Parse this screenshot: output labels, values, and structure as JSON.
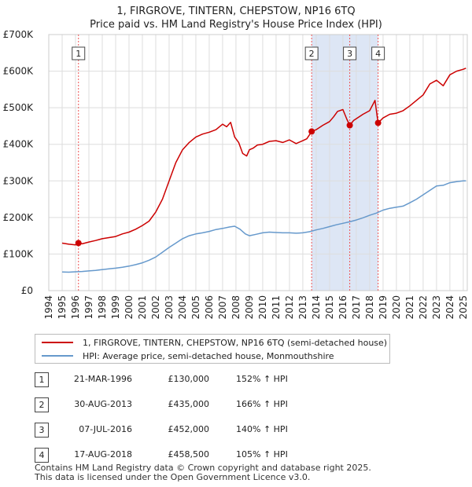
{
  "title_line1": "1, FIRGROVE, TINTERN, CHEPSTOW, NP16 6TQ",
  "title_line2": "Price paid vs. HM Land Registry's House Price Index (HPI)",
  "chart_data": {
    "type": "line",
    "title": "1, FIRGROVE, TINTERN, CHEPSTOW, NP16 6TQ — Price paid vs. HM Land Registry's House Price Index (HPI)",
    "xlabel": "",
    "ylabel": "",
    "xlim": [
      1994,
      2025.3
    ],
    "ylim": [
      0,
      700000
    ],
    "y_ticks": [
      0,
      100000,
      200000,
      300000,
      400000,
      500000,
      600000,
      700000
    ],
    "y_tick_labels": [
      "£0",
      "£100K",
      "£200K",
      "£300K",
      "£400K",
      "£500K",
      "£600K",
      "£700K"
    ],
    "x_ticks": [
      1994,
      1995,
      1996,
      1997,
      1998,
      1999,
      2000,
      2001,
      2002,
      2003,
      2004,
      2005,
      2006,
      2007,
      2008,
      2009,
      2010,
      2011,
      2012,
      2013,
      2014,
      2015,
      2016,
      2017,
      2018,
      2019,
      2020,
      2021,
      2022,
      2023,
      2024,
      2025
    ],
    "grid": true,
    "series": [
      {
        "name": "1, FIRGROVE, TINTERN, CHEPSTOW, NP16 6TQ (semi-detached house)",
        "color": "#cc0000",
        "x": [
          1995.0,
          1995.5,
          1996.0,
          1996.22,
          1996.5,
          1997.0,
          1997.5,
          1998.0,
          1998.5,
          1999.0,
          1999.5,
          2000.0,
          2000.5,
          2001.0,
          2001.5,
          2002.0,
          2002.5,
          2003.0,
          2003.5,
          2004.0,
          2004.5,
          2005.0,
          2005.5,
          2006.0,
          2006.5,
          2007.0,
          2007.3,
          2007.6,
          2007.9,
          2008.2,
          2008.5,
          2008.8,
          2009.0,
          2009.3,
          2009.6,
          2010.0,
          2010.5,
          2011.0,
          2011.5,
          2012.0,
          2012.5,
          2013.0,
          2013.3,
          2013.66,
          2014.0,
          2014.5,
          2015.0,
          2015.3,
          2015.6,
          2016.0,
          2016.3,
          2016.51,
          2016.8,
          2017.0,
          2017.5,
          2018.0,
          2018.4,
          2018.63,
          2019.0,
          2019.5,
          2020.0,
          2020.5,
          2021.0,
          2021.5,
          2022.0,
          2022.5,
          2023.0,
          2023.5,
          2024.0,
          2024.5,
          2025.0,
          2025.2
        ],
        "values": [
          130000,
          127000,
          125000,
          130000,
          128000,
          133000,
          137000,
          142000,
          145000,
          148000,
          155000,
          160000,
          168000,
          178000,
          190000,
          215000,
          250000,
          300000,
          350000,
          385000,
          405000,
          420000,
          428000,
          433000,
          440000,
          455000,
          448000,
          460000,
          420000,
          405000,
          375000,
          368000,
          385000,
          390000,
          398000,
          400000,
          408000,
          410000,
          405000,
          412000,
          402000,
          410000,
          415000,
          435000,
          440000,
          452000,
          462000,
          475000,
          490000,
          495000,
          468000,
          452000,
          465000,
          470000,
          482000,
          492000,
          520000,
          458500,
          472000,
          482000,
          485000,
          492000,
          505000,
          520000,
          535000,
          565000,
          575000,
          560000,
          590000,
          600000,
          605000,
          608000
        ]
      },
      {
        "name": "HPI: Average price, semi-detached house, Monmouthshire",
        "color": "#6699cc",
        "x": [
          1995.0,
          1995.5,
          1996.0,
          1996.5,
          1997.0,
          1997.5,
          1998.0,
          1998.5,
          1999.0,
          1999.5,
          2000.0,
          2000.5,
          2001.0,
          2001.5,
          2002.0,
          2002.5,
          2003.0,
          2003.5,
          2004.0,
          2004.5,
          2005.0,
          2005.5,
          2006.0,
          2006.5,
          2007.0,
          2007.5,
          2007.9,
          2008.3,
          2008.7,
          2009.0,
          2009.5,
          2010.0,
          2010.5,
          2011.0,
          2011.5,
          2012.0,
          2012.5,
          2013.0,
          2013.5,
          2014.0,
          2014.5,
          2015.0,
          2015.5,
          2016.0,
          2016.5,
          2017.0,
          2017.5,
          2018.0,
          2018.5,
          2019.0,
          2019.5,
          2020.0,
          2020.5,
          2021.0,
          2021.5,
          2022.0,
          2022.5,
          2023.0,
          2023.5,
          2024.0,
          2024.5,
          2025.0,
          2025.2
        ],
        "values": [
          51000,
          50500,
          51500,
          52500,
          54000,
          55500,
          57500,
          59500,
          61500,
          64000,
          67000,
          71000,
          76000,
          83000,
          92000,
          105000,
          118000,
          130000,
          142000,
          150000,
          155000,
          158000,
          162000,
          167000,
          170000,
          174000,
          176000,
          168000,
          155000,
          150000,
          154000,
          158000,
          160000,
          159000,
          158000,
          158000,
          157000,
          158000,
          161000,
          166000,
          170000,
          175000,
          180000,
          184000,
          188000,
          193000,
          199000,
          206000,
          212000,
          220000,
          225000,
          228000,
          231000,
          240000,
          250000,
          262000,
          274000,
          286000,
          288000,
          295000,
          298000,
          300000,
          300000
        ]
      }
    ],
    "sales": [
      {
        "label": "1",
        "x": 1996.22,
        "value": 130000
      },
      {
        "label": "2",
        "x": 2013.66,
        "value": 435000
      },
      {
        "label": "3",
        "x": 2016.51,
        "value": 452000
      },
      {
        "label": "4",
        "x": 2018.63,
        "value": 458500
      }
    ],
    "shaded_spans": [
      [
        2013.66,
        2016.51
      ],
      [
        2016.51,
        2018.63
      ]
    ],
    "legend_position": "below"
  },
  "legend": {
    "items": [
      {
        "label": "1, FIRGROVE, TINTERN, CHEPSTOW, NP16 6TQ (semi-detached house)",
        "color": "#cc0000"
      },
      {
        "label": "HPI: Average price, semi-detached house, Monmouthshire",
        "color": "#6699cc"
      }
    ]
  },
  "sales_table": [
    {
      "num": "1",
      "date": "21-MAR-1996",
      "price": "£130,000",
      "hpi": "152% ↑ HPI"
    },
    {
      "num": "2",
      "date": "30-AUG-2013",
      "price": "£435,000",
      "hpi": "166% ↑ HPI"
    },
    {
      "num": "3",
      "date": "07-JUL-2016",
      "price": "£452,000",
      "hpi": "140% ↑ HPI"
    },
    {
      "num": "4",
      "date": "17-AUG-2018",
      "price": "£458,500",
      "hpi": "105% ↑ HPI"
    }
  ],
  "footer": {
    "line1": "Contains HM Land Registry data © Crown copyright and database right 2025.",
    "line2": "This data is licensed under the Open Government Licence v3.0."
  },
  "colors": {
    "price_line": "#cc0000",
    "hpi_line": "#6699cc",
    "shade": "#dde6f5",
    "grid": "#dddddd",
    "marker_line": "#ee5555"
  }
}
